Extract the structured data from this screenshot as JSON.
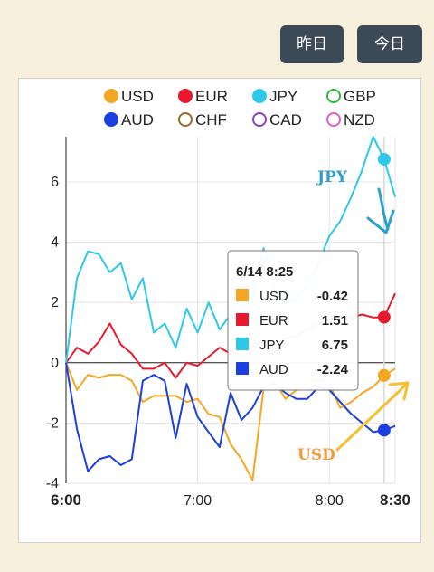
{
  "toolbar": {
    "yesterday_label": "昨日",
    "today_label": "今日"
  },
  "chart_data": {
    "type": "line",
    "x": [
      "6:00",
      "6:05",
      "6:10",
      "6:15",
      "6:20",
      "6:25",
      "6:30",
      "6:35",
      "6:40",
      "6:45",
      "6:50",
      "6:55",
      "7:00",
      "7:05",
      "7:10",
      "7:15",
      "7:20",
      "7:25",
      "7:30",
      "7:35",
      "7:40",
      "7:45",
      "7:50",
      "7:55",
      "8:00",
      "8:05",
      "8:10",
      "8:15",
      "8:20",
      "8:25",
      "8:30"
    ],
    "x_ticks": [
      "6:00",
      "7:00",
      "8:00",
      "8:30"
    ],
    "ylim": [
      -4,
      7.5
    ],
    "y_ticks": [
      -4,
      -2,
      0,
      2,
      4,
      6
    ],
    "grid": true,
    "legend": {
      "placement": "top",
      "entries": [
        {
          "name": "USD",
          "color": "#f5a623",
          "filled": true
        },
        {
          "name": "EUR",
          "color": "#e8192c",
          "filled": true
        },
        {
          "name": "JPY",
          "color": "#2ec8ea",
          "filled": true
        },
        {
          "name": "GBP",
          "color": "#2db83d",
          "filled": false
        },
        {
          "name": "AUD",
          "color": "#1b3fe0",
          "filled": true
        },
        {
          "name": "CHF",
          "color": "#9a6a2a",
          "filled": false
        },
        {
          "name": "CAD",
          "color": "#8a3fd0",
          "filled": false
        },
        {
          "name": "NZD",
          "color": "#e060c0",
          "filled": false
        }
      ]
    },
    "series": [
      {
        "name": "USD",
        "color": "#f5a623",
        "values": [
          0,
          -0.9,
          -0.4,
          -0.5,
          -0.4,
          -0.4,
          -0.6,
          -1.3,
          -1.1,
          -1.1,
          -1.1,
          -1.3,
          -1.2,
          -1.7,
          -1.8,
          -2.7,
          -3.2,
          -3.9,
          -0.9,
          -0.6,
          -1.2,
          -0.9,
          -0.7,
          -0.5,
          -0.7,
          -1.5,
          -1.3,
          -1.0,
          -0.8,
          -0.42,
          -0.2
        ]
      },
      {
        "name": "EUR",
        "color": "#e8192c",
        "values": [
          0,
          0.5,
          0.3,
          0.7,
          1.3,
          0.6,
          0.3,
          -0.2,
          -0.2,
          0,
          -0.5,
          0,
          -0.1,
          0.2,
          0.5,
          0.3,
          0.4,
          0.6,
          0.7,
          0.6,
          0.8,
          0.9,
          1.1,
          1.3,
          1.4,
          1.5,
          1.5,
          1.6,
          1.5,
          1.51,
          2.3
        ]
      },
      {
        "name": "JPY",
        "color": "#2ec8ea",
        "values": [
          0,
          2.8,
          3.7,
          3.6,
          3.0,
          3.3,
          2.1,
          2.8,
          1.0,
          1.3,
          0.5,
          1.8,
          1.0,
          2.0,
          1.1,
          1.6,
          2.3,
          2.1,
          3.8,
          2.5,
          2.0,
          2.1,
          2.6,
          3.3,
          4.2,
          4.7,
          5.5,
          6.4,
          7.5,
          6.75,
          5.5
        ]
      },
      {
        "name": "AUD",
        "color": "#1b3fe0",
        "values": [
          0,
          -2.2,
          -3.6,
          -3.2,
          -3.1,
          -3.4,
          -3.2,
          -0.6,
          -0.4,
          -0.6,
          -2.5,
          -0.7,
          -1.8,
          -2.3,
          -2.8,
          -1.0,
          -1.9,
          -1.5,
          -0.8,
          -0.7,
          -1.0,
          -1.2,
          -1.2,
          -0.8,
          -0.9,
          -1.3,
          -1.7,
          -2.0,
          -2.3,
          -2.24,
          -2.1
        ]
      }
    ],
    "tooltip": {
      "title": "6/14 8:25",
      "rows": [
        {
          "name": "USD",
          "value": "-0.42",
          "color": "#f5a623"
        },
        {
          "name": "EUR",
          "value": "1.51",
          "color": "#e8192c"
        },
        {
          "name": "JPY",
          "value": "6.75",
          "color": "#2ec8ea"
        },
        {
          "name": "AUD",
          "value": "-2.24",
          "color": "#1b3fe0"
        }
      ]
    },
    "annotations": [
      {
        "text": "JPY",
        "color": "#2a9fd0"
      },
      {
        "text": "USD",
        "color": "#f39a3a"
      }
    ]
  }
}
